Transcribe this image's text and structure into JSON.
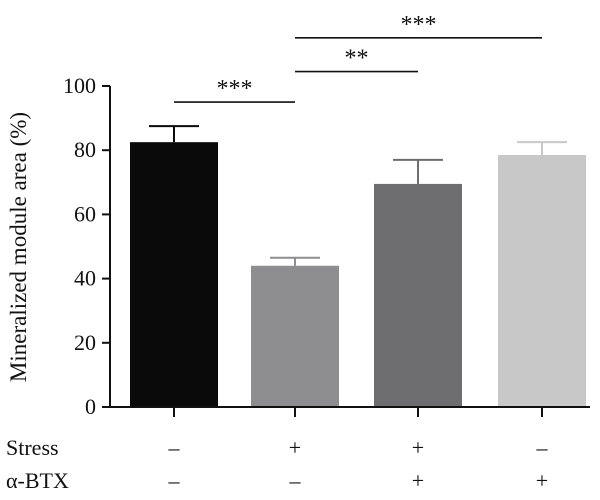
{
  "chart_data": {
    "type": "bar",
    "title": "",
    "xlabel": "",
    "ylabel": "Mineralized module area (%)",
    "ylim": [
      0,
      100
    ],
    "yticks": [
      0,
      20,
      40,
      60,
      80,
      100
    ],
    "grid": false,
    "legend": "none",
    "values": [
      82.5,
      44,
      69.5,
      78.5
    ],
    "errors": [
      5,
      2.5,
      7.5,
      4
    ],
    "colors": [
      "#0a0a0a",
      "#8e8e90",
      "#6e6e70",
      "#c8c8c8"
    ],
    "conditions": [
      {
        "label": "Stress",
        "values": [
          "–",
          "+",
          "+",
          "–"
        ]
      },
      {
        "label": "α-BTX",
        "values": [
          "–",
          "–",
          "+",
          "+"
        ]
      }
    ],
    "significance": [
      {
        "from": 0,
        "to": 1,
        "label": "***",
        "y": 95
      },
      {
        "from": 1,
        "to": 2,
        "label": "**",
        "y": 104.5
      },
      {
        "from": 1,
        "to": 3,
        "label": "***",
        "y": 115
      }
    ]
  }
}
